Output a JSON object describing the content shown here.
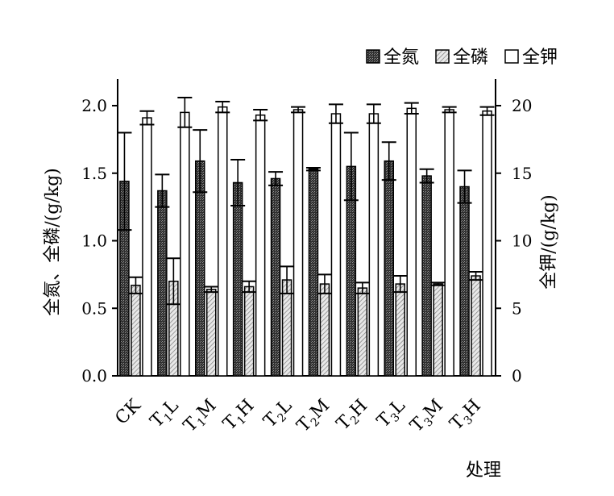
{
  "chart_data": {
    "type": "bar",
    "categories": [
      "CK",
      "T1L",
      "T1M",
      "T1H",
      "T2L",
      "T2M",
      "T2H",
      "T3L",
      "T3M",
      "T3H"
    ],
    "category_labels": [
      {
        "main": "CK",
        "sub": ""
      },
      {
        "main": "T",
        "sub": "1",
        "rest": "L"
      },
      {
        "main": "T",
        "sub": "1",
        "rest": "M"
      },
      {
        "main": "T",
        "sub": "1",
        "rest": "H"
      },
      {
        "main": "T",
        "sub": "2",
        "rest": "L"
      },
      {
        "main": "T",
        "sub": "2",
        "rest": "M"
      },
      {
        "main": "T",
        "sub": "2",
        "rest": "H"
      },
      {
        "main": "T",
        "sub": "3",
        "rest": "L"
      },
      {
        "main": "T",
        "sub": "3",
        "rest": "M"
      },
      {
        "main": "T",
        "sub": "3",
        "rest": "H"
      }
    ],
    "series": [
      {
        "name": "全氮",
        "axis": "left",
        "pattern": "dark",
        "values": [
          1.44,
          1.37,
          1.59,
          1.43,
          1.46,
          1.53,
          1.55,
          1.59,
          1.48,
          1.4
        ],
        "errors": [
          0.36,
          0.12,
          0.23,
          0.17,
          0.05,
          0.01,
          0.25,
          0.14,
          0.05,
          0.12
        ]
      },
      {
        "name": "全磷",
        "axis": "left",
        "pattern": "light",
        "values": [
          0.67,
          0.7,
          0.64,
          0.66,
          0.71,
          0.68,
          0.65,
          0.68,
          0.68,
          0.74
        ],
        "errors": [
          0.06,
          0.17,
          0.02,
          0.04,
          0.1,
          0.07,
          0.04,
          0.06,
          0.01,
          0.03
        ]
      },
      {
        "name": "全钾",
        "axis": "right",
        "pattern": "white",
        "values": [
          19.1,
          19.5,
          19.9,
          19.3,
          19.7,
          19.4,
          19.4,
          19.8,
          19.7,
          19.6
        ],
        "errors": [
          0.5,
          1.1,
          0.4,
          0.4,
          0.2,
          0.7,
          0.7,
          0.4,
          0.2,
          0.3
        ]
      }
    ],
    "ylabel_left": "全氮、全磷/(g/kg)",
    "ylabel_right": "全钾/(g/kg)",
    "xlabel": "处理",
    "ylim_left": [
      0,
      2.0
    ],
    "ylim_right": [
      0,
      20
    ],
    "yticks_left": [
      "0.0",
      "0.5",
      "1.0",
      "1.5",
      "2.0"
    ],
    "yticks_right": [
      "0",
      "5",
      "10",
      "15",
      "20"
    ],
    "legend_position": "top-right",
    "grid": false
  },
  "colors": {
    "dark_fill": "#3f3f3f",
    "light_fill": "#c6c6c6",
    "white_fill": "#ffffff",
    "stroke": "#000000"
  }
}
